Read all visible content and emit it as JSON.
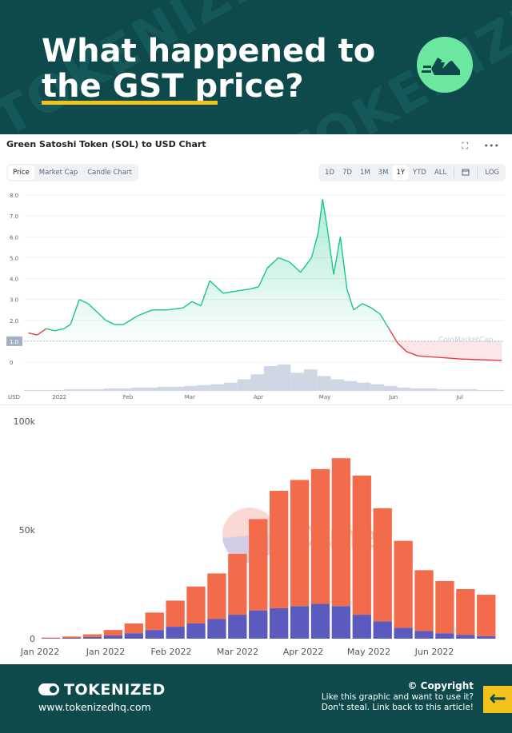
{
  "header": {
    "title": "What happened to the GST price?",
    "watermark": "TOKENIZED",
    "badge_icon": "running-shoe-icon"
  },
  "chart1": {
    "title": "Green Satoshi Token (SOL) to USD Chart",
    "tabs": [
      "Price",
      "Market Cap",
      "Candle Chart"
    ],
    "active_tab": "Price",
    "ranges": [
      "1D",
      "7D",
      "1M",
      "3M",
      "1Y",
      "YTD",
      "ALL",
      "LOG"
    ],
    "active_range": "1Y",
    "calendar_icon": "calendar-icon",
    "expand_icon": "expand-icon",
    "more_icon": "more-icon",
    "current_price_label": "1.0",
    "currency": "USD",
    "watermark": "CoinMarketCap",
    "color_up": "#16c784",
    "color_down": "#ea3943"
  },
  "chart2": {
    "watermark": "Dune",
    "color_top": "#f26b4a",
    "color_bottom": "#5b5bbf"
  },
  "chart_data": [
    {
      "type": "line",
      "title": "Green Satoshi Token (SOL) to USD Chart",
      "ylabel": "USD",
      "ylim": [
        0,
        8
      ],
      "yticks": [
        "8.0",
        "7.0",
        "6.0",
        "5.0",
        "4.0",
        "3.0",
        "2.0",
        "1.0",
        "0"
      ],
      "xticks": [
        "2022",
        "Feb",
        "Mar",
        "Apr",
        "May",
        "Jun",
        "Jul"
      ],
      "series": [
        {
          "x": [
            "2021-12-18",
            "2021-12-22",
            "2021-12-26",
            "2021-12-30",
            "2022-01-03",
            "2022-01-06",
            "2022-01-10",
            "2022-01-14",
            "2022-01-18",
            "2022-01-22",
            "2022-01-26",
            "2022-01-30",
            "2022-02-05",
            "2022-02-12",
            "2022-02-19",
            "2022-02-26",
            "2022-03-02",
            "2022-03-06",
            "2022-03-10",
            "2022-03-16",
            "2022-03-22",
            "2022-03-28",
            "2022-04-01",
            "2022-04-05",
            "2022-04-10",
            "2022-04-15",
            "2022-04-20",
            "2022-04-25",
            "2022-04-28",
            "2022-04-30",
            "2022-05-02",
            "2022-05-05",
            "2022-05-08",
            "2022-05-11",
            "2022-05-14",
            "2022-05-18",
            "2022-05-22",
            "2022-05-26",
            "2022-05-30",
            "2022-06-03",
            "2022-06-07",
            "2022-06-12",
            "2022-06-18",
            "2022-06-25",
            "2022-07-01",
            "2022-07-08",
            "2022-07-15",
            "2022-07-20"
          ],
          "values": [
            1.4,
            1.3,
            1.6,
            1.5,
            1.6,
            1.8,
            3.0,
            2.8,
            2.4,
            2.0,
            1.8,
            1.8,
            2.2,
            2.5,
            2.5,
            2.6,
            2.9,
            2.7,
            3.9,
            3.3,
            3.4,
            3.5,
            3.6,
            4.5,
            5.0,
            4.8,
            4.3,
            5.0,
            6.2,
            7.8,
            6.5,
            4.2,
            6.0,
            3.5,
            2.5,
            2.8,
            2.6,
            2.3,
            1.6,
            0.9,
            0.5,
            0.3,
            0.25,
            0.2,
            0.15,
            0.12,
            0.1,
            0.08
          ]
        }
      ]
    },
    {
      "type": "bar",
      "stacked": true,
      "ylim": [
        0,
        100000
      ],
      "yticks": [
        "100k",
        "50k",
        "0"
      ],
      "xticks": [
        "Jan 2022",
        "Jan 2022",
        "Feb 2022",
        "Mar 2022",
        "Apr 2022",
        "May 2022",
        "Jun 2022"
      ],
      "x": [
        "01-01",
        "01-15",
        "01-29",
        "02-12",
        "02-26",
        "03-12",
        "03-19",
        "03-26",
        "04-02",
        "04-09",
        "04-16",
        "04-23",
        "04-30",
        "05-07",
        "05-14",
        "05-21",
        "05-28",
        "06-04",
        "06-11",
        "06-18",
        "06-25",
        "07-02"
      ],
      "series": [
        {
          "values": [
            200,
            400,
            800,
            1500,
            2500,
            4000,
            5500,
            7000,
            9000,
            11000,
            13000,
            14000,
            15000,
            16000,
            15000,
            11000,
            8000,
            5000,
            3500,
            2500,
            1800,
            1200
          ]
        },
        {
          "values": [
            300,
            600,
            1200,
            2500,
            4500,
            8000,
            12000,
            17000,
            21000,
            28000,
            42000,
            54000,
            58000,
            62000,
            68000,
            64000,
            52000,
            40000,
            28000,
            24000,
            21000,
            19000
          ]
        }
      ]
    }
  ]
}
